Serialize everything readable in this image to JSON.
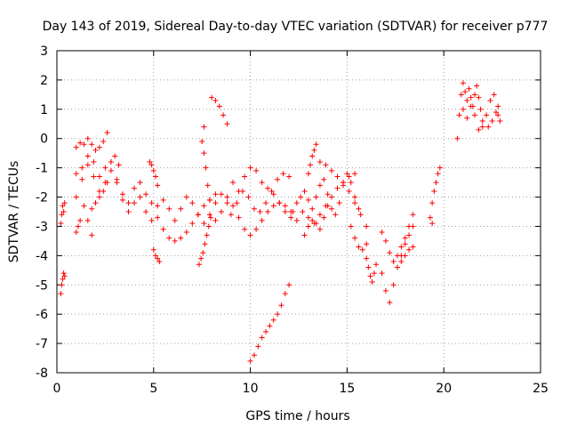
{
  "chart_data": {
    "type": "scatter",
    "title": "Day 143 of 2019, Sidereal Day-to-day VTEC variation (SDTVAR) for receiver p777",
    "xlabel": "GPS time / hours",
    "ylabel": "SDTVAR / TECUs",
    "xlim": [
      0,
      25
    ],
    "ylim": [
      -8,
      3
    ],
    "xticks": [
      0,
      5,
      10,
      15,
      20,
      25
    ],
    "yticks": [
      -8,
      -7,
      -6,
      -5,
      -4,
      -3,
      -2,
      -1,
      0,
      1,
      2,
      3
    ],
    "xtick_labels": [
      "0",
      "5",
      "10",
      "15",
      "20",
      "25"
    ],
    "ytick_labels": [
      "-8",
      "-7",
      "-6",
      "-5",
      "-4",
      "-3",
      "-2",
      "-1",
      "0",
      "1",
      "2",
      "3"
    ],
    "grid": true,
    "marker": "+",
    "color": "#ff0000",
    "segments": [
      {
        "x": [
          0.2,
          0.25,
          0.3,
          0.35,
          0.4
        ],
        "y": [
          -2.9,
          -2.6,
          -2.3,
          -2.5,
          -2.2
        ]
      },
      {
        "x": [
          0.2,
          0.25,
          0.3,
          0.35,
          0.4
        ],
        "y": [
          -5.3,
          -5.0,
          -4.8,
          -4.6,
          -4.7
        ]
      },
      {
        "x": [
          1.0,
          1.2,
          1.4,
          1.6,
          1.8,
          2.0,
          2.2,
          2.4,
          2.6
        ],
        "y": [
          -0.3,
          -0.15,
          -0.2,
          0.0,
          -0.2,
          -0.4,
          -0.3,
          -0.1,
          0.2
        ]
      },
      {
        "x": [
          1.0,
          1.3,
          1.6,
          1.9,
          2.2,
          2.5,
          2.8,
          3.1,
          3.4,
          3.7,
          4.0,
          4.3,
          4.6,
          4.9,
          5.2,
          5.5,
          5.8,
          6.1,
          6.4,
          6.7,
          7.0,
          7.3,
          7.6,
          7.9,
          8.2
        ],
        "y": [
          -1.2,
          -1.0,
          -0.9,
          -1.3,
          -1.8,
          -1.5,
          -1.1,
          -1.4,
          -1.9,
          -2.2,
          -1.7,
          -1.5,
          -1.9,
          -2.2,
          -2.7,
          -3.1,
          -3.4,
          -3.5,
          -3.4,
          -3.2,
          -2.9,
          -2.6,
          -2.3,
          -2.1,
          -1.9
        ]
      },
      {
        "x": [
          1.0,
          1.3,
          1.6,
          1.9,
          2.2,
          2.5,
          2.8,
          3.1,
          3.4,
          3.7,
          4.0,
          4.3,
          4.6,
          4.9,
          5.2,
          5.5,
          5.8,
          6.1,
          6.4,
          6.7,
          7.0,
          7.3,
          7.6,
          7.9,
          8.2,
          8.5,
          8.8
        ],
        "y": [
          -2.0,
          -1.4,
          -0.6,
          -0.8,
          -1.3,
          -1.0,
          -0.8,
          -1.5,
          -2.1,
          -2.5,
          -2.2,
          -2.0,
          -2.5,
          -2.8,
          -2.3,
          -2.1,
          -2.4,
          -2.8,
          -2.4,
          -2.0,
          -2.2,
          -2.6,
          -2.9,
          -2.6,
          -2.2,
          -1.9,
          -2.2
        ]
      },
      {
        "x": [
          1.0,
          1.1,
          1.2,
          1.4,
          1.6,
          1.8
        ],
        "y": [
          -3.2,
          -3.0,
          -2.8,
          -2.3,
          -2.8,
          -3.3
        ]
      },
      {
        "x": [
          1.8,
          2.0,
          2.2,
          2.4,
          2.6,
          2.8,
          3.0,
          3.2
        ],
        "y": [
          -2.4,
          -2.2,
          -2.0,
          -1.8,
          -1.5,
          -0.8,
          -0.6,
          -0.9
        ]
      },
      {
        "x": [
          5.0,
          5.1,
          5.2,
          5.3
        ],
        "y": [
          -3.8,
          -4.0,
          -4.1,
          -4.2
        ]
      },
      {
        "x": [
          4.8,
          4.9,
          5.0,
          5.1,
          5.2
        ],
        "y": [
          -0.8,
          -0.9,
          -1.1,
          -1.3,
          -1.6
        ]
      },
      {
        "x": [
          7.35,
          7.45,
          7.55,
          7.65,
          7.75,
          7.85,
          7.95
        ],
        "y": [
          -4.3,
          -4.1,
          -3.9,
          -3.6,
          -3.3,
          -3.0,
          -2.7
        ]
      },
      {
        "x": [
          7.5,
          7.6,
          7.7,
          7.8,
          7.9
        ],
        "y": [
          -0.1,
          -0.5,
          -1.0,
          -1.6,
          -2.1
        ]
      },
      {
        "x": [
          7.6
        ],
        "y": [
          0.4
        ]
      },
      {
        "x": [
          8.0,
          8.2,
          8.4,
          8.6,
          8.8
        ],
        "y": [
          1.4,
          1.3,
          1.1,
          0.8,
          0.5
        ]
      },
      {
        "x": [
          8.2,
          8.5,
          8.8,
          9.1,
          9.4,
          9.7,
          10.0,
          10.3,
          10.6,
          10.9,
          11.2,
          11.5,
          11.8,
          12.1
        ],
        "y": [
          -2.8,
          -2.5,
          -2.0,
          -1.5,
          -1.8,
          -1.3,
          -1.0,
          -1.1,
          -1.5,
          -1.7,
          -1.9,
          -2.2,
          -2.5,
          -2.7
        ]
      },
      {
        "x": [
          8.8,
          9.1,
          9.4,
          9.7,
          10.0,
          10.3,
          10.6,
          10.9,
          11.2,
          11.5,
          11.8,
          12.1
        ],
        "y": [
          -2.0,
          -2.3,
          -2.7,
          -3.1,
          -3.3,
          -3.1,
          -2.8,
          -2.5,
          -2.3,
          -2.2,
          -2.3,
          -2.5
        ]
      },
      {
        "x": [
          9.0,
          9.3,
          9.6,
          9.9,
          10.2,
          10.5,
          10.8,
          11.1,
          11.4,
          11.7,
          12.0
        ],
        "y": [
          -2.6,
          -2.2,
          -1.8,
          -2.0,
          -2.4,
          -2.5,
          -2.2,
          -1.8,
          -1.4,
          -1.2,
          -1.3
        ]
      },
      {
        "x": [
          10.0,
          10.2,
          10.4,
          10.6,
          10.8,
          11.0,
          11.2,
          11.4,
          11.6,
          11.8,
          12.0
        ],
        "y": [
          -7.6,
          -7.4,
          -7.1,
          -6.8,
          -6.6,
          -6.4,
          -6.2,
          -6.0,
          -5.7,
          -5.3,
          -5.0
        ]
      },
      {
        "x": [
          12.2,
          12.4,
          12.6,
          12.8,
          13.0,
          13.2,
          13.4,
          13.6,
          13.8,
          14.0,
          14.2,
          14.4,
          14.6,
          14.8,
          15.0,
          15.2,
          15.4,
          15.6
        ],
        "y": [
          -2.5,
          -2.2,
          -2.0,
          -1.8,
          -2.1,
          -2.4,
          -2.0,
          -1.6,
          -1.4,
          -1.9,
          -2.4,
          -2.6,
          -2.2,
          -1.6,
          -1.2,
          -1.5,
          -2.0,
          -2.4
        ]
      },
      {
        "x": [
          12.4,
          12.7,
          13.0,
          13.3,
          13.6,
          13.9,
          14.2,
          14.5,
          14.8,
          15.1,
          15.4
        ],
        "y": [
          -2.8,
          -2.5,
          -2.7,
          -2.9,
          -2.6,
          -2.3,
          -2.0,
          -1.7,
          -1.5,
          -1.3,
          -1.2
        ]
      },
      {
        "x": [
          13.0,
          13.1,
          13.2,
          13.3,
          13.4
        ],
        "y": [
          -1.2,
          -0.9,
          -0.6,
          -0.4,
          -0.2
        ]
      },
      {
        "x": [
          12.8,
          13.0,
          13.2,
          13.4,
          13.6,
          13.8,
          14.0
        ],
        "y": [
          -3.3,
          -3.0,
          -2.8,
          -2.9,
          -3.1,
          -2.7,
          -2.3
        ]
      },
      {
        "x": [
          13.6,
          13.9,
          14.2,
          14.5,
          14.8,
          15.1,
          15.4,
          15.7,
          16.0
        ],
        "y": [
          -0.8,
          -0.9,
          -1.1,
          -1.3,
          -1.5,
          -1.8,
          -2.2,
          -2.6,
          -3.0
        ]
      },
      {
        "x": [
          15.2,
          15.4,
          15.6,
          15.8,
          16.0
        ],
        "y": [
          -3.0,
          -3.4,
          -3.7,
          -3.8,
          -3.6
        ]
      },
      {
        "x": [
          16.0,
          16.1,
          16.2,
          16.3,
          16.4,
          16.5
        ],
        "y": [
          -4.1,
          -4.4,
          -4.7,
          -4.9,
          -4.6,
          -4.3
        ]
      },
      {
        "x": [
          16.8,
          17.0,
          17.2,
          17.4,
          17.6,
          17.8,
          18.0,
          18.2,
          18.4
        ],
        "y": [
          -3.2,
          -3.5,
          -3.9,
          -4.2,
          -4.0,
          -3.7,
          -3.4,
          -3.0,
          -2.6
        ]
      },
      {
        "x": [
          16.8,
          17.0,
          17.2,
          17.4,
          17.6,
          17.8,
          18.0,
          18.2,
          18.4
        ],
        "y": [
          -4.6,
          -5.2,
          -5.6,
          -5.0,
          -4.4,
          -4.0,
          -3.6,
          -3.3,
          -3.0
        ]
      },
      {
        "x": [
          17.6,
          17.8,
          18.0,
          18.2,
          18.4
        ],
        "y": [
          -4.4,
          -4.2,
          -4.0,
          -3.8,
          -3.7
        ]
      },
      {
        "x": [
          19.3,
          19.4
        ],
        "y": [
          -2.7,
          -2.9
        ]
      },
      {
        "x": [
          19.4,
          19.5,
          19.6,
          19.7,
          19.8
        ],
        "y": [
          -2.2,
          -1.8,
          -1.5,
          -1.2,
          -1.0
        ]
      },
      {
        "x": [
          20.7,
          20.8,
          20.9,
          21.0,
          21.1,
          21.2,
          21.3,
          21.4,
          21.5,
          21.6,
          21.7,
          21.8,
          21.9,
          22.0
        ],
        "y": [
          0.0,
          0.8,
          1.5,
          1.9,
          1.6,
          1.3,
          1.7,
          1.4,
          1.1,
          1.5,
          1.8,
          1.4,
          1.0,
          0.6
        ]
      },
      {
        "x": [
          21.0,
          21.2,
          21.4,
          21.6,
          21.8,
          22.0,
          22.2,
          22.4,
          22.6,
          22.8
        ],
        "y": [
          1.0,
          0.7,
          1.1,
          0.8,
          0.3,
          0.4,
          0.8,
          1.3,
          1.5,
          1.1
        ]
      },
      {
        "x": [
          22.3,
          22.5,
          22.7,
          22.8,
          22.9
        ],
        "y": [
          0.4,
          0.6,
          0.9,
          0.8,
          0.6
        ]
      }
    ]
  }
}
